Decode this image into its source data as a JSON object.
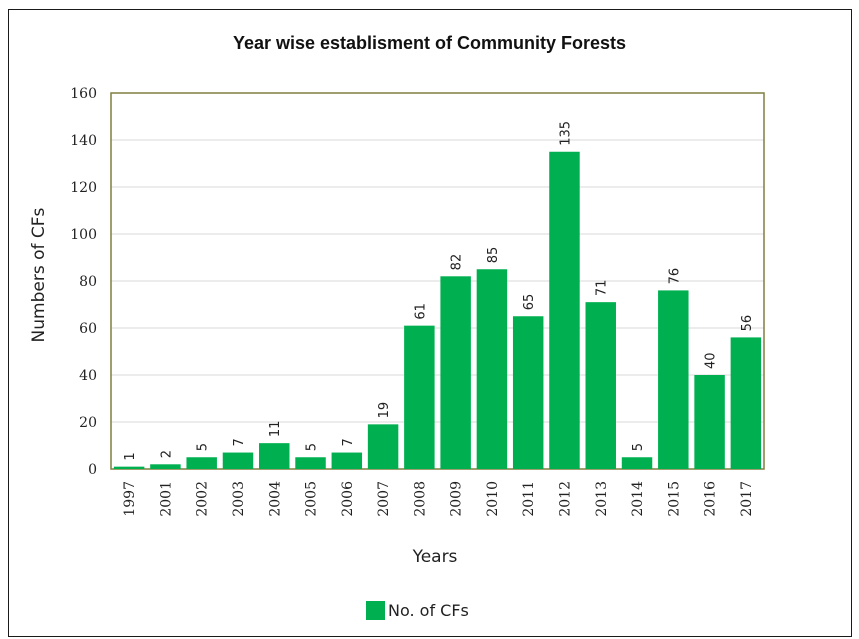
{
  "chart_data": {
    "type": "bar",
    "title": "Year wise establisment of Community Forests",
    "xlabel": "Years",
    "ylabel": "Numbers of CFs",
    "categories": [
      "1997",
      "2001",
      "2002",
      "2003",
      "2004",
      "2005",
      "2006",
      "2007",
      "2008",
      "2009",
      "2010",
      "2011",
      "2012",
      "2013",
      "2014",
      "2015",
      "2016",
      "2017"
    ],
    "series": [
      {
        "name": "No. of CFs",
        "values": [
          1,
          2,
          5,
          7,
          11,
          5,
          7,
          19,
          61,
          82,
          85,
          65,
          135,
          71,
          5,
          76,
          40,
          56
        ]
      }
    ],
    "ylim": [
      0,
      160
    ],
    "yticks": [
      "0",
      "20",
      "40",
      "60",
      "80",
      "100",
      "120",
      "140",
      "160"
    ],
    "grid": true,
    "legend_position": "bottom",
    "bar_color": "#00b050",
    "plot_border_color": "#7f7f3f",
    "grid_color": "#d9d9d9"
  }
}
